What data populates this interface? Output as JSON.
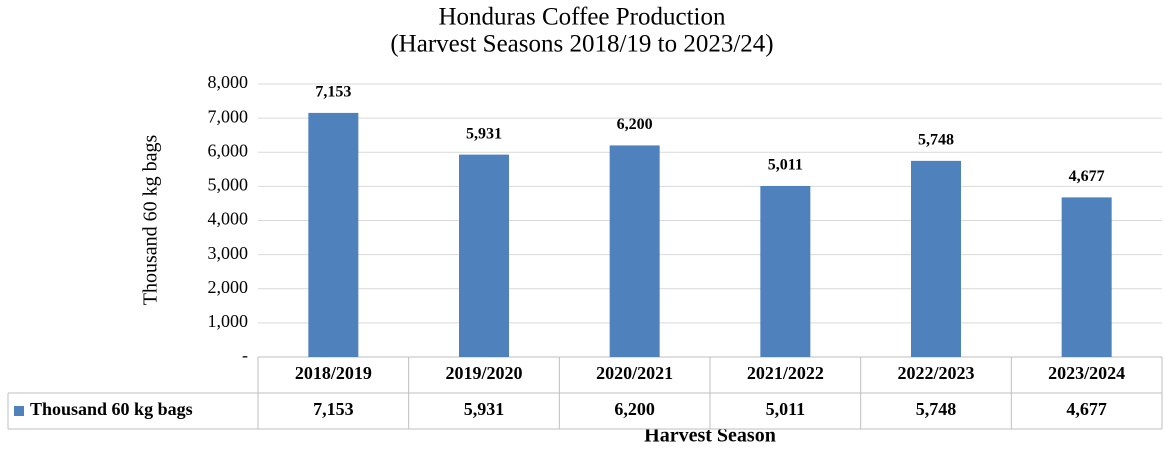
{
  "chart_data": {
    "type": "bar",
    "title": "Honduras Coffee Production",
    "subtitle": "(Harvest Seasons 2018/19 to 2023/24)",
    "y_label": "Thousand 60 kg bags",
    "x_label": "Harvest Season",
    "categories": [
      "2018/2019",
      "2019/2020",
      "2020/2021",
      "2021/2022",
      "2022/2023",
      "2023/2024"
    ],
    "series": [
      {
        "name": "Thousand 60 kg bags",
        "color": "#4f81bd",
        "values": [
          7153,
          5931,
          6200,
          5011,
          5748,
          4677
        ],
        "value_labels": [
          "7,153",
          "5,931",
          "6,200",
          "5,011",
          "5,748",
          "4,677"
        ]
      }
    ],
    "ylim": [
      0,
      8000
    ],
    "yticks": [
      {
        "value": 0,
        "label": "-"
      },
      {
        "value": 1000,
        "label": "1,000"
      },
      {
        "value": 2000,
        "label": "2,000"
      },
      {
        "value": 3000,
        "label": "3,000"
      },
      {
        "value": 4000,
        "label": "4,000"
      },
      {
        "value": 5000,
        "label": "5,000"
      },
      {
        "value": 6000,
        "label": "6,000"
      },
      {
        "value": 7000,
        "label": "7,000"
      },
      {
        "value": 8000,
        "label": "8,000"
      }
    ],
    "grid": true
  }
}
